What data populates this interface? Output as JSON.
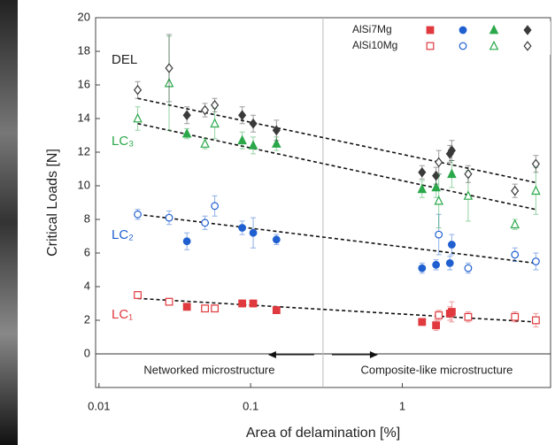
{
  "chart_data": {
    "type": "scatter",
    "x_label": "Area of delamination [%]",
    "y_label": "Critical Loads [N]",
    "log_x": true,
    "xlim": [
      0.0095,
      9.5
    ],
    "ylim": [
      -2,
      20
    ],
    "xticks": [
      0.01,
      0.1,
      1
    ],
    "yticks": [
      0,
      2,
      4,
      6,
      8,
      10,
      12,
      14,
      16,
      18,
      20
    ],
    "hline": 0,
    "divider": 0.3,
    "region_labels": [
      "Networked microstructure",
      "Composite-like microstructure"
    ],
    "curve_labels": [
      "DEL",
      "LC₃",
      "LC₂",
      "LC₁"
    ],
    "groups": [
      {
        "name": "AlSi7Mg",
        "fill": "filled",
        "series": [
          {
            "marker": "square",
            "color": "#e0393e",
            "x": [
              0.038,
              0.088,
              0.104,
              0.148,
              1.35,
              1.67,
              2.06,
              2.12
            ],
            "values": [
              2.8,
              3.0,
              3.0,
              2.6,
              1.9,
              1.7,
              2.4,
              2.5
            ],
            "errors": [
              0.2,
              0.2,
              0.2,
              0.2,
              0.2,
              0.3,
              0.4,
              0.6
            ]
          },
          {
            "marker": "circle",
            "color": "#1f5fd0",
            "x": [
              0.038,
              0.088,
              0.104,
              0.148,
              1.35,
              1.67,
              2.06,
              2.12
            ],
            "values": [
              6.7,
              7.5,
              7.2,
              6.8,
              5.1,
              5.3,
              5.4,
              6.5
            ],
            "errors": [
              0.5,
              0.4,
              0.9,
              0.3,
              0.3,
              0.3,
              0.4,
              0.6
            ]
          },
          {
            "marker": "triangle",
            "color": "#2aa84a",
            "x": [
              0.038,
              0.088,
              0.104,
              0.148,
              1.35,
              1.67,
              2.12
            ],
            "values": [
              13.1,
              12.7,
              12.4,
              12.5,
              9.8,
              9.9,
              10.7
            ],
            "errors": [
              0.3,
              0.5,
              0.5,
              0.4,
              0.5,
              0.6,
              0.8
            ]
          },
          {
            "marker": "diamond",
            "color": "#3a3a3a",
            "x": [
              0.038,
              0.088,
              0.104,
              0.148,
              1.35,
              1.67,
              2.06,
              2.12
            ],
            "values": [
              14.2,
              14.2,
              13.7,
              13.3,
              10.8,
              10.6,
              11.9,
              12.1
            ],
            "errors": [
              0.5,
              0.5,
              0.5,
              0.6,
              0.4,
              0.5,
              0.5,
              0.6
            ]
          }
        ]
      },
      {
        "name": "AlSi10Mg",
        "fill": "open",
        "series": [
          {
            "marker": "square",
            "color": "#e0393e",
            "x": [
              0.018,
              0.029,
              0.05,
              0.058,
              1.74,
              2.72,
              5.53,
              7.6
            ],
            "values": [
              3.5,
              3.1,
              2.7,
              2.7,
              2.3,
              2.2,
              2.2,
              2.0
            ],
            "errors": [
              0.2,
              0.2,
              0.2,
              0.2,
              0.3,
              0.3,
              0.3,
              0.4
            ]
          },
          {
            "marker": "circle",
            "color": "#1f5fd0",
            "x": [
              0.018,
              0.029,
              0.05,
              0.058,
              1.74,
              2.72,
              5.53,
              7.6
            ],
            "values": [
              8.3,
              8.1,
              7.8,
              8.8,
              7.1,
              5.1,
              5.9,
              5.5
            ],
            "errors": [
              0.3,
              0.4,
              0.4,
              0.6,
              1.2,
              0.3,
              0.4,
              0.5
            ]
          },
          {
            "marker": "triangle",
            "color": "#2aa84a",
            "x": [
              0.018,
              0.029,
              0.05,
              0.058,
              1.74,
              2.72,
              5.53,
              7.6
            ],
            "values": [
              14.0,
              16.1,
              12.5,
              13.7,
              9.1,
              9.4,
              7.7,
              9.7
            ],
            "errors": [
              0.7,
              2.8,
              0.3,
              0.9,
              1.6,
              1.5,
              0.3,
              1.4
            ]
          },
          {
            "marker": "diamond",
            "color": "#3a3a3a",
            "x": [
              0.018,
              0.029,
              0.05,
              0.058,
              1.74,
              2.72,
              5.53,
              7.6
            ],
            "values": [
              15.7,
              17.0,
              14.5,
              14.8,
              11.4,
              10.7,
              9.7,
              11.3
            ],
            "errors": [
              0.5,
              2.0,
              0.4,
              0.4,
              0.7,
              0.5,
              0.4,
              0.5
            ]
          }
        ]
      }
    ],
    "trend_lines": [
      {
        "x": [
          0.018,
          7.5
        ],
        "values": [
          15.2,
          10.2
        ]
      },
      {
        "x": [
          0.018,
          7.5
        ],
        "values": [
          13.7,
          8.6
        ]
      },
      {
        "x": [
          0.018,
          7.5
        ],
        "values": [
          8.3,
          5.4
        ]
      },
      {
        "x": [
          0.018,
          7.5
        ],
        "values": [
          3.3,
          1.9
        ]
      }
    ]
  }
}
